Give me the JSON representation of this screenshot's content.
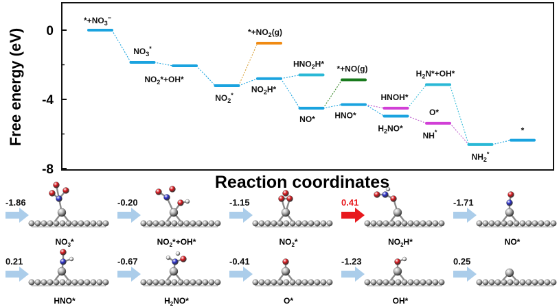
{
  "chart_data": {
    "type": "line",
    "ylabel": "Free energy (eV)",
    "xlabel": "Reaction coordinates",
    "ylim": [
      -8,
      1.5
    ],
    "yticks": [
      "0",
      "-4",
      "-8"
    ],
    "ytick_values": [
      0,
      -4,
      -8
    ],
    "levels": [
      {
        "id": "L1",
        "label": "*+NO3-",
        "label_html": "*+NO<tspan font-size='9' dy='3'>3</tspan><tspan font-size='9' dy='-8'>−</tspan>",
        "x": 1,
        "y": 0.0,
        "color": "#1aa3df"
      },
      {
        "id": "L2",
        "label": "NO3*",
        "label_html": "NO<tspan font-size='9' dy='3'>3</tspan><tspan font-size='9' dy='-8'>*</tspan>",
        "x": 2,
        "y": -1.86,
        "color": "#1aa3df"
      },
      {
        "id": "L3",
        "label": "NO2*+OH*",
        "label_html": "NO<tspan font-size='9' dy='3'>2</tspan><tspan dy='-3'>*+OH*</tspan>",
        "x": 3,
        "y": -2.06,
        "color": "#1aa3df"
      },
      {
        "id": "L4",
        "label": "NO2*",
        "label_html": "NO<tspan font-size='9' dy='3'>2</tspan><tspan font-size='9' dy='-8'>*</tspan>",
        "x": 4,
        "y": -3.21,
        "color": "#1aa3df"
      },
      {
        "id": "L5",
        "label": "*+NO2(g)",
        "label_html": "*+NO<tspan font-size='9' dy='3'>2</tspan><tspan dy='-3'>(g)</tspan>",
        "x": 5,
        "y": -0.75,
        "color": "#f08a12"
      },
      {
        "id": "L6",
        "label": "NO2H*",
        "label_html": "NO<tspan font-size='9' dy='3'>2</tspan><tspan dy='-3'>H*</tspan>",
        "x": 5,
        "y": -2.8,
        "color": "#1aa3df"
      },
      {
        "id": "L7",
        "label": "HNO2H*",
        "label_html": "HNO<tspan font-size='9' dy='3'>2</tspan><tspan dy='-3'>H*</tspan>",
        "x": 6,
        "y": -2.59,
        "color": "#2ab8d6"
      },
      {
        "id": "L8",
        "label": "NO*",
        "label_html": "NO*",
        "x": 6,
        "y": -4.51,
        "color": "#1aa3df"
      },
      {
        "id": "L9",
        "label": "*+NO(g)",
        "label_html": "*+NO(g)",
        "x": 7,
        "y": -2.87,
        "color": "#187a1c"
      },
      {
        "id": "L10",
        "label": "HNO*",
        "label_html": "HNO*",
        "x": 7,
        "y": -4.3,
        "color": "#1aa3df"
      },
      {
        "id": "L11",
        "label": "HNOH*",
        "label_html": "HNOH*",
        "x": 8,
        "y": -4.51,
        "color": "#d13fd6"
      },
      {
        "id": "L12",
        "label": "H2NO*",
        "label_html": "H<tspan font-size='9' dy='3'>2</tspan><tspan dy='-3'>NO*</tspan>",
        "x": 8,
        "y": -4.97,
        "color": "#1aa3df"
      },
      {
        "id": "L13",
        "label": "H2N*+OH*",
        "label_html": "H<tspan font-size='9' dy='3'>2</tspan><tspan dy='-3'>N*+OH*</tspan>",
        "x": 9,
        "y": -3.15,
        "color": "#2ab8d6"
      },
      {
        "id": "L14",
        "label": "O*",
        "label_html": "O*",
        "x": 9,
        "y": -5.38,
        "color": "#d13fd6"
      },
      {
        "id": "L15",
        "label": "NH2*",
        "label_html": "NH<tspan font-size='9' dy='3'>2</tspan><tspan font-size='9' dy='-8'>*</tspan>",
        "x": 10,
        "y": -6.61,
        "color": "#2ab8d6"
      },
      {
        "id": "L16",
        "label": "*",
        "label_html": "*",
        "x": 11,
        "y": -6.36,
        "color": "#1aa3df"
      }
    ],
    "connections": [
      {
        "from": "L1",
        "to": "L2",
        "color": "#1aa3df"
      },
      {
        "from": "L2",
        "to": "L3",
        "color": "#1aa3df"
      },
      {
        "from": "L3",
        "to": "L4",
        "color": "#1aa3df"
      },
      {
        "from": "L4",
        "to": "L5",
        "color": "#d9a23a"
      },
      {
        "from": "L4",
        "to": "L6",
        "color": "#1aa3df"
      },
      {
        "from": "L6",
        "to": "L7",
        "color": "#1aa3df"
      },
      {
        "from": "L6",
        "to": "L8",
        "color": "#1aa3df"
      },
      {
        "from": "L8",
        "to": "L9",
        "color": "#3a8a2a"
      },
      {
        "from": "L8",
        "to": "L10",
        "color": "#1aa3df"
      },
      {
        "from": "L10",
        "to": "L11",
        "color": "#b84fc9"
      },
      {
        "from": "L10",
        "to": "L12",
        "color": "#1aa3df"
      },
      {
        "from": "L11",
        "to": "L13",
        "color": "#2ab8d6"
      },
      {
        "from": "L12",
        "to": "L14",
        "color": "#b84fc9"
      },
      {
        "from": "L14",
        "to": "L15",
        "color": "#b84fc9"
      },
      {
        "from": "L13",
        "to": "L15",
        "color": "#2ab8d6"
      },
      {
        "from": "L15",
        "to": "L16",
        "color": "#1aa3df"
      }
    ]
  },
  "barriers": {
    "row1": [
      {
        "value": "-1.86",
        "label": "NO3*",
        "label_html": "NO<tspan font-size='8' dy='3'>3</tspan><tspan dy='-3'>*</tspan>",
        "highlight": false,
        "molecule": "nitrate"
      },
      {
        "value": "-0.20",
        "label": "NO2*+OH*",
        "label_html": "NO<tspan font-size='8' dy='3'>2</tspan><tspan dy='-3'>*+OH*</tspan>",
        "highlight": false,
        "molecule": "no2-oh"
      },
      {
        "value": "-1.15",
        "label": "NO2*",
        "label_html": "NO<tspan font-size='8' dy='3'>2</tspan><tspan dy='-3'>*</tspan>",
        "highlight": false,
        "molecule": "no2"
      },
      {
        "value": "0.41",
        "label": "NO2H*",
        "label_html": "NO<tspan font-size='8' dy='3'>2</tspan><tspan dy='-3'>H*</tspan>",
        "highlight": true,
        "molecule": "no2h"
      },
      {
        "value": "-1.71",
        "label": "NO*",
        "label_html": "NO*",
        "highlight": false,
        "molecule": "no"
      }
    ],
    "row2": [
      {
        "value": "0.21",
        "label": "HNO*",
        "label_html": "HNO*",
        "highlight": false,
        "molecule": "hno"
      },
      {
        "value": "-0.67",
        "label": "H2NO*",
        "label_html": "H<tspan font-size='8' dy='3'>2</tspan><tspan dy='-3'>NO*</tspan>",
        "highlight": false,
        "molecule": "h2no"
      },
      {
        "value": "-0.41",
        "label": "O*",
        "label_html": "O*",
        "highlight": false,
        "molecule": "o"
      },
      {
        "value": "-1.23",
        "label": "OH*",
        "label_html": "OH*",
        "highlight": false,
        "molecule": "oh"
      },
      {
        "value": "0.25",
        "label": "",
        "label_html": "",
        "highlight": false,
        "molecule": "empty"
      }
    ]
  },
  "colors": {
    "arrow": "#9cc4e6",
    "arrow_highlight": "#e8191e",
    "highlight_text": "#e8191e",
    "atom_N": "#2a2fc9",
    "atom_O": "#d9161c",
    "atom_H": "#eeeeee",
    "atom_substrate": "#b8b8b8"
  }
}
